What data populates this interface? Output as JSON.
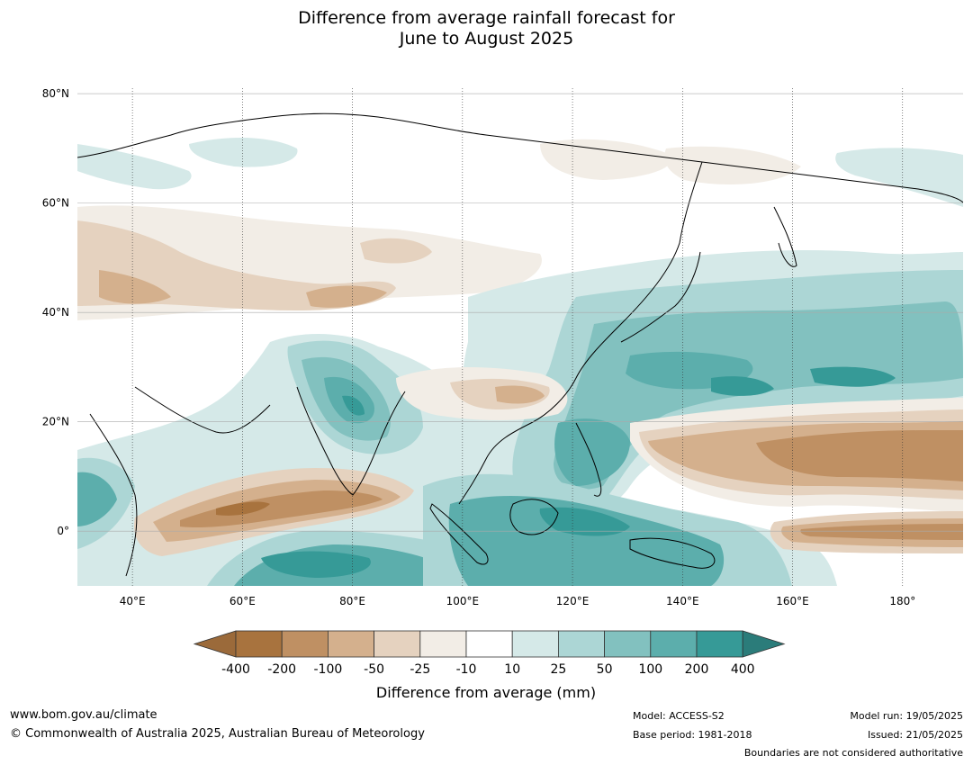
{
  "title_line1": "Difference from average rainfall forecast for",
  "title_line2": "June to August 2025",
  "map": {
    "extent": {
      "lon_min": 30,
      "lon_max": 191,
      "lat_min": -10,
      "lat_max": 81
    },
    "lat_ticks": [
      {
        "value": 80,
        "label": "80°N"
      },
      {
        "value": 60,
        "label": "60°N"
      },
      {
        "value": 40,
        "label": "40°N"
      },
      {
        "value": 20,
        "label": "20°N"
      },
      {
        "value": 0,
        "label": "0°"
      }
    ],
    "lon_ticks": [
      {
        "value": 40,
        "label": "40°E"
      },
      {
        "value": 60,
        "label": "60°E"
      },
      {
        "value": 80,
        "label": "80°E"
      },
      {
        "value": 100,
        "label": "100°E"
      },
      {
        "value": 120,
        "label": "120°E"
      },
      {
        "value": 140,
        "label": "140°E"
      },
      {
        "value": 160,
        "label": "160°E"
      },
      {
        "value": 180,
        "label": "180°"
      }
    ]
  },
  "legend": {
    "title": "Difference from average (mm)",
    "boundaries": [
      "-400",
      "-200",
      "-100",
      "-50",
      "-25",
      "-10",
      "10",
      "25",
      "50",
      "100",
      "200",
      "400"
    ],
    "colors": [
      "#9b6a3a",
      "#a8733e",
      "#bf9063",
      "#d4b08d",
      "#e5d2bf",
      "#f2ede6",
      "#ffffff",
      "#d5e9e8",
      "#acd6d5",
      "#82c1bf",
      "#5caeac",
      "#369a97",
      "#2b7c7a"
    ]
  },
  "footer": {
    "website": "www.bom.gov.au/climate",
    "copyright": "© Commonwealth of Australia 2025, Australian Bureau of Meteorology",
    "model": "Model: ACCESS-S2",
    "base_period": "Base period: 1981-2018",
    "model_run": "Model run: 19/05/2025",
    "issued": "Issued: 21/05/2025",
    "disclaimer": "Boundaries are not considered authoritative"
  }
}
